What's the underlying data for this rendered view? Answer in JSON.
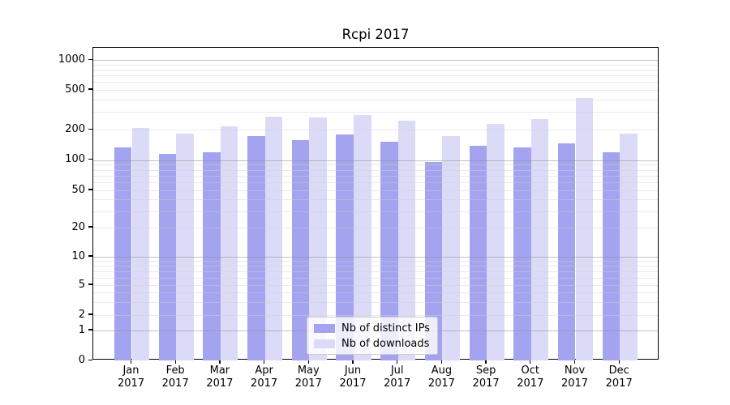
{
  "title": "Rcpi 2017",
  "chart_data": {
    "type": "bar",
    "title": "Rcpi 2017",
    "categories": [
      "Jan 2017",
      "Feb 2017",
      "Mar 2017",
      "Apr 2017",
      "May 2017",
      "Jun 2017",
      "Jul 2017",
      "Aug 2017",
      "Sep 2017",
      "Oct 2017",
      "Nov 2017",
      "Dec 2017"
    ],
    "series": [
      {
        "name": "Nb of distinct IPs",
        "color": "#a3a3f0",
        "values": [
          135,
          115,
          120,
          172,
          158,
          180,
          153,
          95,
          140,
          134,
          148,
          120
        ]
      },
      {
        "name": "Nb of downloads",
        "color": "#dbdbf8",
        "values": [
          210,
          185,
          218,
          270,
          268,
          283,
          245,
          172,
          228,
          255,
          415,
          185
        ]
      }
    ],
    "yscale": "symlog",
    "yticks": [
      0,
      1,
      2,
      5,
      10,
      20,
      50,
      100,
      200,
      500,
      1000
    ],
    "ylim": [
      0,
      1270
    ],
    "xlabel": "",
    "ylabel": "",
    "grid": true,
    "legend_position": "lower center"
  }
}
